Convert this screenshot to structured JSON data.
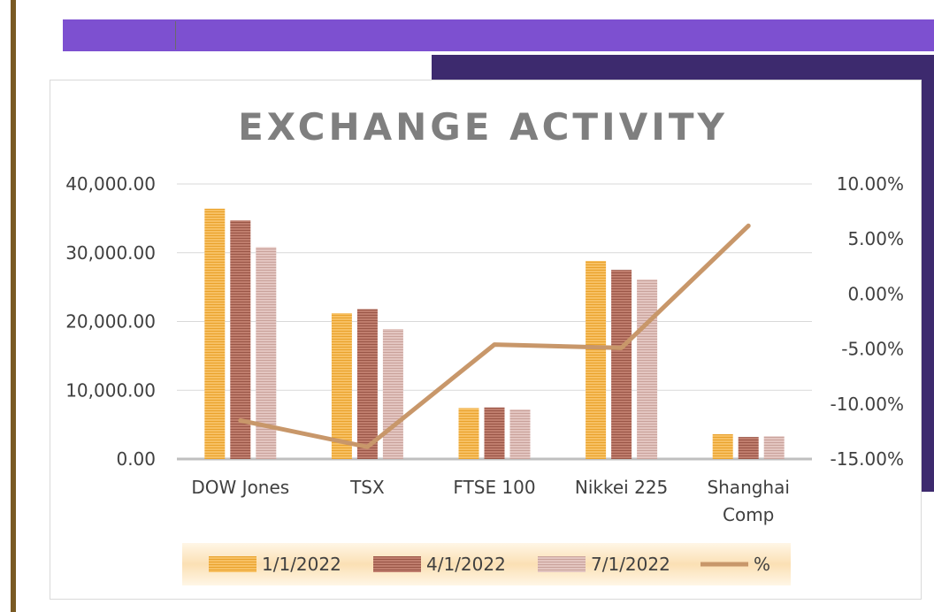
{
  "chart_data": {
    "type": "bar",
    "title": "EXCHANGE ACTIVITY",
    "categories": [
      "DOW Jones",
      "TSX",
      "FTSE 100",
      "Nikkei 225",
      "Shanghai Comp"
    ],
    "category_lines": [
      [
        "DOW Jones"
      ],
      [
        "TSX"
      ],
      [
        "FTSE 100"
      ],
      [
        "Nikkei 225"
      ],
      [
        "Shanghai",
        "Comp"
      ]
    ],
    "series": [
      {
        "name": "1/1/2022",
        "axis": "left",
        "kind": "bar",
        "color": "#f5b041",
        "values": [
          36400,
          21200,
          7400,
          28800,
          3600
        ]
      },
      {
        "name": "4/1/2022",
        "axis": "left",
        "kind": "bar",
        "color": "#b06a5a",
        "values": [
          34700,
          21800,
          7500,
          27500,
          3200
        ]
      },
      {
        "name": "7/1/2022",
        "axis": "left",
        "kind": "bar",
        "color": "#d9b3ad",
        "values": [
          30800,
          18900,
          7200,
          26100,
          3300
        ]
      },
      {
        "name": "%",
        "axis": "right",
        "kind": "line",
        "color": "#c8976a",
        "values": [
          -11.5,
          -13.9,
          -4.6,
          -4.9,
          6.2
        ]
      }
    ],
    "left_axis": {
      "min": 0,
      "max": 40000,
      "ticks": [
        "0.00",
        "10,000.00",
        "20,000.00",
        "30,000.00",
        "40,000.00"
      ]
    },
    "right_axis": {
      "min": -15,
      "max": 10,
      "ticks": [
        "-15.00%",
        "-10.00%",
        "-5.00%",
        "0.00%",
        "5.00%",
        "10.00%"
      ]
    },
    "legend": {
      "position": "bottom"
    },
    "grid": true
  }
}
